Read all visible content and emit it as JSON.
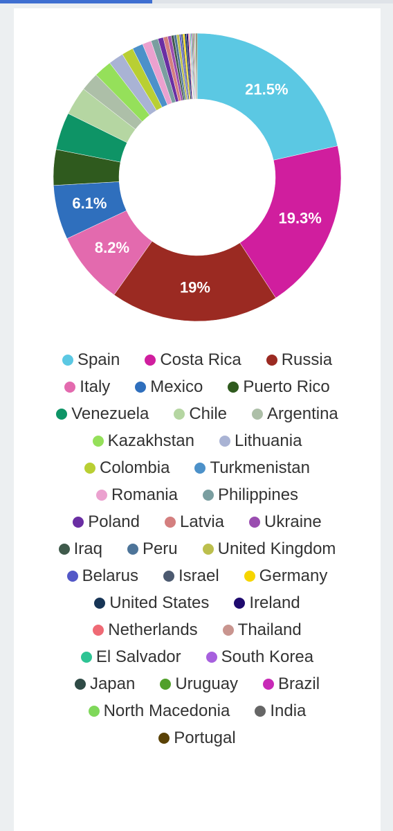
{
  "chart_data": {
    "type": "donut",
    "categories": [
      "Spain",
      "Costa Rica",
      "Russia",
      "Italy",
      "Mexico",
      "Puerto Rico",
      "Venezuela",
      "Chile",
      "Argentina",
      "Kazakhstan",
      "Lithuania",
      "Colombia",
      "Turkmenistan",
      "Romania",
      "Philippines",
      "Poland",
      "Latvia",
      "Ukraine",
      "Iraq",
      "Peru",
      "United Kingdom",
      "Belarus",
      "Israel",
      "Germany",
      "United States",
      "Ireland",
      "Netherlands",
      "Thailand",
      "El Salvador",
      "South Korea",
      "Japan",
      "Uruguay",
      "Brazil",
      "North Macedonia",
      "India",
      "Portugal"
    ],
    "values": [
      21.5,
      19.3,
      19,
      8.2,
      6.1,
      4.0,
      4.2,
      3.2,
      2.1,
      2.0,
      1.7,
      1.3,
      1.2,
      1.0,
      0.8,
      0.6,
      0.5,
      0.4,
      0.3,
      0.3,
      0.3,
      0.2,
      0.2,
      0.2,
      0.2,
      0.2,
      0.1,
      0.1,
      0.1,
      0.1,
      0.1,
      0.1,
      0.1,
      0.1,
      0.1,
      0.1
    ],
    "value_labels": [
      "21.5%",
      "19.3%",
      "19%",
      "8.2%",
      "6.1%",
      null,
      null,
      null,
      null,
      null,
      null,
      null,
      null,
      null,
      null,
      null,
      null,
      null,
      null,
      null,
      null,
      null,
      null,
      null,
      null,
      null,
      null,
      null,
      null,
      null,
      null,
      null,
      null,
      null,
      null,
      null
    ],
    "colors": [
      "#5bc8e3",
      "#d01e9e",
      "#9b2a22",
      "#e36aae",
      "#2f6fbd",
      "#2f5a1e",
      "#0e9466",
      "#b5d6a2",
      "#adbfa8",
      "#95e05a",
      "#a9b3d4",
      "#b9cf33",
      "#4c91c9",
      "#eba1cf",
      "#7a9ea0",
      "#6a2ea3",
      "#d47f7f",
      "#9a4db0",
      "#3f5a4b",
      "#4d7499",
      "#bcbf4d",
      "#5358c7",
      "#4c5a70",
      "#f6d500",
      "#173556",
      "#1e0a6e",
      "#ef6a75",
      "#c9958f",
      "#2ec494",
      "#a760de",
      "#2f4b46",
      "#51a02a",
      "#c82ab7",
      "#7fd85a",
      "#666666",
      "#5a4206"
    ],
    "legend": "bottom"
  }
}
